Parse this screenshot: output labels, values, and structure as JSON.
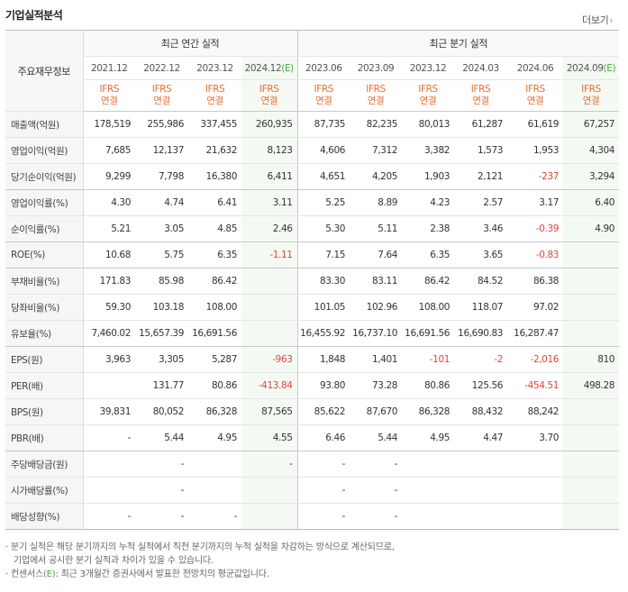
{
  "header": {
    "title": "기업실적분석",
    "more_label": "더보기",
    "more_arrow": "›"
  },
  "table": {
    "row_header_label": "주요재무정보",
    "annual_group_label": "최근 연간 실적",
    "quarter_group_label": "최근 분기 실적",
    "periods": [
      {
        "label": "2021.12",
        "estimate": false
      },
      {
        "label": "2022.12",
        "estimate": false
      },
      {
        "label": "2023.12",
        "estimate": false
      },
      {
        "label": "2024.12",
        "estimate": true
      },
      {
        "label": "2023.06",
        "estimate": false
      },
      {
        "label": "2023.09",
        "estimate": false
      },
      {
        "label": "2023.12",
        "estimate": false
      },
      {
        "label": "2024.03",
        "estimate": false
      },
      {
        "label": "2024.06",
        "estimate": false
      },
      {
        "label": "2024.09",
        "estimate": true
      }
    ],
    "estimate_mark": "(E)",
    "standard_label": "IFRS",
    "basis_label": "연결",
    "rows": [
      {
        "label": "매출액(억원)",
        "values": [
          "178,519",
          "255,986",
          "337,455",
          "260,935",
          "87,735",
          "82,235",
          "80,013",
          "61,287",
          "61,619",
          "67,257"
        ]
      },
      {
        "label": "영업이익(억원)",
        "values": [
          "7,685",
          "12,137",
          "21,632",
          "8,123",
          "4,606",
          "7,312",
          "3,382",
          "1,573",
          "1,953",
          "4,304"
        ]
      },
      {
        "label": "당기순이익(억원)",
        "values": [
          "9,299",
          "7,798",
          "16,380",
          "6,411",
          "4,651",
          "4,205",
          "1,903",
          "2,121",
          "-237",
          "3,294"
        ]
      },
      {
        "label": "영업이익률(%)",
        "values": [
          "4.30",
          "4.74",
          "6.41",
          "3.11",
          "5.25",
          "8.89",
          "4.23",
          "2.57",
          "3.17",
          "6.40"
        ]
      },
      {
        "label": "순이익률(%)",
        "values": [
          "5.21",
          "3.05",
          "4.85",
          "2.46",
          "5.30",
          "5.11",
          "2.38",
          "3.46",
          "-0.39",
          "4.90"
        ]
      },
      {
        "label": "ROE(%)",
        "values": [
          "10.68",
          "5.75",
          "6.35",
          "-1.11",
          "7.15",
          "7.64",
          "6.35",
          "3.65",
          "-0.83",
          ""
        ]
      },
      {
        "label": "부채비율(%)",
        "values": [
          "171.83",
          "85.98",
          "86.42",
          "",
          "83.30",
          "83.11",
          "86.42",
          "84.52",
          "86.38",
          ""
        ]
      },
      {
        "label": "당좌비율(%)",
        "values": [
          "59.30",
          "103.18",
          "108.00",
          "",
          "101.05",
          "102.96",
          "108.00",
          "118.07",
          "97.02",
          ""
        ]
      },
      {
        "label": "유보율(%)",
        "values": [
          "7,460.02",
          "15,657.39",
          "16,691.56",
          "",
          "16,455.92",
          "16,737.10",
          "16,691.56",
          "16,690.83",
          "16,287.47",
          ""
        ]
      },
      {
        "label": "EPS(원)",
        "values": [
          "3,963",
          "3,305",
          "5,287",
          "-963",
          "1,848",
          "1,401",
          "-101",
          "-2",
          "-2,016",
          "810"
        ]
      },
      {
        "label": "PER(배)",
        "values": [
          "",
          "131.77",
          "80.86",
          "-413.84",
          "93.80",
          "73.28",
          "80.86",
          "125.56",
          "-454.51",
          "498.28"
        ]
      },
      {
        "label": "BPS(원)",
        "values": [
          "39,831",
          "80,052",
          "86,328",
          "87,565",
          "85,622",
          "87,670",
          "86,328",
          "88,432",
          "88,242",
          ""
        ]
      },
      {
        "label": "PBR(배)",
        "values": [
          "-",
          "5.44",
          "4.95",
          "4.55",
          "6.46",
          "5.44",
          "4.95",
          "4.47",
          "3.70",
          ""
        ]
      },
      {
        "label": "주당배당금(원)",
        "values": [
          "",
          "-",
          "",
          "-",
          "-",
          "-",
          "",
          "",
          "",
          ""
        ]
      },
      {
        "label": "시가배당률(%)",
        "values": [
          "",
          "-",
          "",
          "",
          "-",
          "-",
          "",
          "",
          "",
          ""
        ]
      },
      {
        "label": "배당성향(%)",
        "values": [
          "-",
          "-",
          "-",
          "",
          "-",
          "-",
          "",
          "",
          "",
          ""
        ]
      }
    ]
  },
  "notes": {
    "line1": "· 분기 실적은 해당 분기까지의 누적 실적에서 직전 분기까지의 누적 실적을 차감하는 방식으로 계산되므로,",
    "line2": "기업에서 공시한 분기 실적과 차이가 있을 수 있습니다.",
    "line3_a": "· 컨센서스",
    "line3_e": "(E)",
    "line3_b": ": 최근 3개월간 증권사에서 발표한 전망치의 평균값입니다."
  },
  "colors": {
    "ifrs": "#ee6b2a",
    "negative": "#e8433a",
    "estimate_mark": "#4aa53e",
    "estimate_bg": "#f4faf3",
    "label_bg": "#f6f6f6"
  }
}
